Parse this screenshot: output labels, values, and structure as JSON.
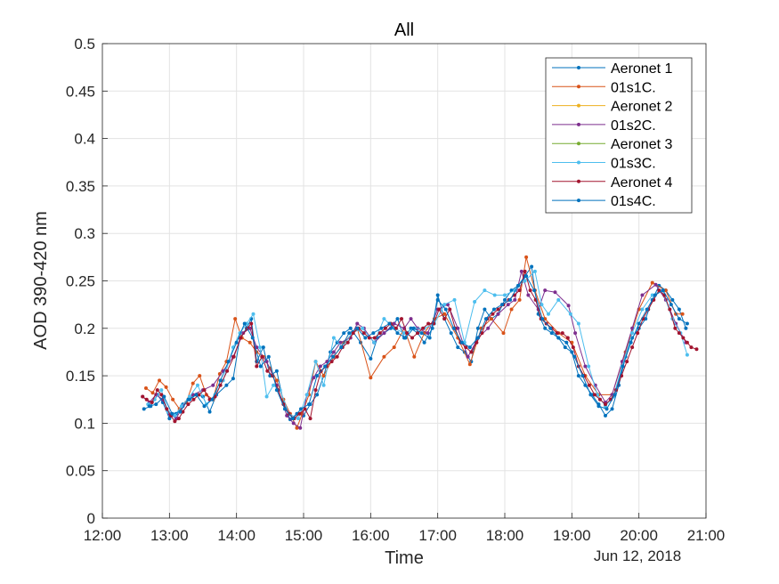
{
  "chart_data": {
    "type": "line",
    "title": "All",
    "xlabel": "Time",
    "ylabel": "AOD 390-420 nm",
    "date_label": "Jun 12, 2018",
    "x_unit": "hours of day (Jun 12, 2018)",
    "xlim": [
      12,
      21
    ],
    "ylim": [
      0,
      0.5
    ],
    "x_ticks": [
      12,
      13,
      14,
      15,
      16,
      17,
      18,
      19,
      20,
      21
    ],
    "x_tick_labels": [
      "12:00",
      "13:00",
      "14:00",
      "15:00",
      "16:00",
      "17:00",
      "18:00",
      "19:00",
      "20:00",
      "21:00"
    ],
    "y_ticks": [
      0,
      0.05,
      0.1,
      0.15,
      0.2,
      0.25,
      0.3,
      0.35,
      0.4,
      0.45,
      0.5
    ],
    "y_tick_labels": [
      "0",
      "0.05",
      "0.1",
      "0.15",
      "0.2",
      "0.25",
      "0.3",
      "0.35",
      "0.4",
      "0.45",
      "0.5"
    ],
    "grid": true,
    "legend_position": "top-right",
    "series": [
      {
        "name": "Aeronet 1",
        "color": "#0072bd",
        "x": [
          12.62,
          12.72,
          12.82,
          12.9,
          13.0,
          13.1,
          13.2,
          13.3,
          13.4,
          13.5,
          13.6,
          13.7,
          13.85,
          13.95,
          14.05,
          14.15,
          14.22,
          14.3,
          14.4,
          14.5,
          14.6,
          14.7,
          14.8,
          14.9,
          15.0,
          15.1,
          15.2,
          15.3,
          15.4,
          15.5,
          15.6,
          15.7,
          15.85,
          16.0,
          16.1,
          16.2,
          16.3,
          16.4,
          16.5,
          16.6,
          16.7,
          16.8,
          16.92,
          17.0,
          17.1,
          17.2,
          17.3,
          17.4,
          17.5,
          17.6,
          17.7,
          17.8,
          17.9,
          18.0,
          18.1,
          18.2,
          18.3,
          18.4,
          18.5,
          18.6,
          18.7,
          18.8,
          18.9,
          19.0,
          19.1,
          19.2,
          19.3,
          19.4,
          19.5,
          19.6,
          19.7,
          19.8,
          19.9,
          20.0,
          20.1,
          20.2,
          20.3,
          20.4,
          20.5,
          20.6,
          20.7
        ],
        "y": [
          0.115,
          0.118,
          0.13,
          0.122,
          0.105,
          0.11,
          0.12,
          0.125,
          0.13,
          0.128,
          0.112,
          0.13,
          0.14,
          0.147,
          0.19,
          0.2,
          0.21,
          0.165,
          0.18,
          0.15,
          0.155,
          0.122,
          0.104,
          0.11,
          0.108,
          0.12,
          0.13,
          0.15,
          0.175,
          0.185,
          0.195,
          0.2,
          0.185,
          0.168,
          0.19,
          0.195,
          0.2,
          0.21,
          0.19,
          0.2,
          0.195,
          0.185,
          0.2,
          0.235,
          0.21,
          0.195,
          0.18,
          0.175,
          0.165,
          0.2,
          0.22,
          0.21,
          0.215,
          0.23,
          0.24,
          0.245,
          0.255,
          0.265,
          0.215,
          0.2,
          0.195,
          0.19,
          0.18,
          0.175,
          0.15,
          0.14,
          0.13,
          0.12,
          0.108,
          0.115,
          0.14,
          0.17,
          0.19,
          0.2,
          0.21,
          0.23,
          0.245,
          0.24,
          0.23,
          0.22,
          0.2
        ]
      },
      {
        "name": "01s1C.",
        "color": "#d95319",
        "x": [
          12.65,
          12.75,
          12.85,
          12.95,
          13.05,
          13.15,
          13.25,
          13.35,
          13.45,
          13.55,
          13.65,
          13.75,
          13.85,
          13.98,
          14.08,
          14.2,
          14.3,
          14.4,
          14.5,
          14.6,
          14.7,
          14.8,
          14.9,
          14.98,
          15.08,
          15.18,
          15.3,
          15.45,
          15.6,
          15.8,
          16.0,
          16.2,
          16.35,
          16.5,
          16.65,
          16.8,
          16.95,
          17.1,
          17.3,
          17.48,
          17.65,
          17.8,
          17.98,
          18.1,
          18.22,
          18.32,
          18.45,
          18.6,
          18.8,
          19.0,
          19.2,
          19.4,
          19.6,
          19.8,
          20.0,
          20.2,
          20.4,
          20.55,
          20.65
        ],
        "y": [
          0.137,
          0.132,
          0.145,
          0.138,
          0.125,
          0.115,
          0.122,
          0.142,
          0.15,
          0.13,
          0.125,
          0.152,
          0.165,
          0.21,
          0.19,
          0.185,
          0.175,
          0.17,
          0.158,
          0.145,
          0.125,
          0.11,
          0.095,
          0.11,
          0.13,
          0.165,
          0.15,
          0.17,
          0.185,
          0.2,
          0.148,
          0.17,
          0.18,
          0.2,
          0.17,
          0.195,
          0.21,
          0.215,
          0.19,
          0.162,
          0.2,
          0.21,
          0.195,
          0.22,
          0.23,
          0.275,
          0.24,
          0.21,
          0.195,
          0.185,
          0.15,
          0.13,
          0.13,
          0.175,
          0.22,
          0.248,
          0.24,
          0.215,
          0.215
        ]
      },
      {
        "name": "Aeronet 2",
        "color": "#edb120",
        "x": [],
        "y": []
      },
      {
        "name": "01s2C.",
        "color": "#7e2f8e",
        "x": [
          12.6,
          12.7,
          12.8,
          12.9,
          13.0,
          13.1,
          13.2,
          13.35,
          13.5,
          13.65,
          13.8,
          13.95,
          14.1,
          14.2,
          14.3,
          14.45,
          14.6,
          14.75,
          14.85,
          14.95,
          15.05,
          15.15,
          15.25,
          15.35,
          15.45,
          15.55,
          15.7,
          15.8,
          15.9,
          16.05,
          16.2,
          16.35,
          16.5,
          16.6,
          16.7,
          16.85,
          17.0,
          17.15,
          17.3,
          17.45,
          17.6,
          17.75,
          17.9,
          18.05,
          18.15,
          18.25,
          18.35,
          18.5,
          18.6,
          18.75,
          18.95,
          19.05,
          19.2,
          19.35,
          19.5,
          19.6,
          19.75,
          19.9,
          20.05,
          20.25,
          20.4,
          20.55,
          20.7
        ],
        "y": [
          0.128,
          0.122,
          0.13,
          0.125,
          0.11,
          0.105,
          0.118,
          0.13,
          0.135,
          0.14,
          0.155,
          0.17,
          0.195,
          0.2,
          0.18,
          0.165,
          0.14,
          0.108,
          0.1,
          0.095,
          0.13,
          0.148,
          0.16,
          0.165,
          0.175,
          0.185,
          0.19,
          0.205,
          0.2,
          0.185,
          0.195,
          0.205,
          0.2,
          0.21,
          0.2,
          0.195,
          0.22,
          0.225,
          0.2,
          0.17,
          0.19,
          0.2,
          0.215,
          0.225,
          0.23,
          0.26,
          0.235,
          0.22,
          0.24,
          0.238,
          0.224,
          0.195,
          0.16,
          0.14,
          0.122,
          0.13,
          0.165,
          0.2,
          0.235,
          0.246,
          0.23,
          0.205,
          0.185
        ]
      },
      {
        "name": "Aeronet 3",
        "color": "#77ac30",
        "x": [],
        "y": []
      },
      {
        "name": "01s3C.",
        "color": "#4dbeee",
        "x": [
          12.68,
          12.78,
          12.88,
          12.98,
          13.08,
          13.18,
          13.3,
          13.42,
          13.55,
          13.68,
          13.8,
          13.95,
          14.05,
          14.15,
          14.25,
          14.35,
          14.45,
          14.55,
          14.65,
          14.78,
          14.92,
          15.05,
          15.18,
          15.3,
          15.45,
          15.58,
          15.72,
          15.88,
          16.05,
          16.2,
          16.35,
          16.5,
          16.65,
          16.8,
          16.95,
          17.1,
          17.25,
          17.4,
          17.55,
          17.7,
          17.85,
          18.0,
          18.15,
          18.3,
          18.45,
          18.55,
          18.65,
          18.8,
          18.98,
          19.1,
          19.25,
          19.38,
          19.5,
          19.62,
          19.75,
          19.9,
          20.05,
          20.2,
          20.35,
          20.5,
          20.62,
          20.72
        ],
        "y": [
          0.12,
          0.125,
          0.135,
          0.112,
          0.108,
          0.118,
          0.128,
          0.14,
          0.12,
          0.13,
          0.145,
          0.18,
          0.195,
          0.205,
          0.215,
          0.18,
          0.128,
          0.14,
          0.135,
          0.11,
          0.105,
          0.13,
          0.165,
          0.14,
          0.19,
          0.18,
          0.195,
          0.2,
          0.185,
          0.21,
          0.2,
          0.195,
          0.2,
          0.2,
          0.205,
          0.225,
          0.23,
          0.185,
          0.228,
          0.24,
          0.235,
          0.235,
          0.24,
          0.25,
          0.26,
          0.225,
          0.215,
          0.23,
          0.215,
          0.205,
          0.16,
          0.13,
          0.118,
          0.128,
          0.16,
          0.195,
          0.22,
          0.235,
          0.24,
          0.21,
          0.195,
          0.172
        ]
      },
      {
        "name": "Aeronet 4",
        "color": "#a2142f",
        "x": [
          12.6,
          12.66,
          12.74,
          12.82,
          12.88,
          12.96,
          13.02,
          13.08,
          13.14,
          13.2,
          13.28,
          13.36,
          13.44,
          13.52,
          13.6,
          13.68,
          13.76,
          13.86,
          13.96,
          14.06,
          14.16,
          14.22,
          14.3,
          14.38,
          14.46,
          14.54,
          14.62,
          14.7,
          14.78,
          14.86,
          14.94,
          15.02,
          15.1,
          15.18,
          15.26,
          15.34,
          15.42,
          15.5,
          15.58,
          15.66,
          15.74,
          15.82,
          15.9,
          15.98,
          16.06,
          16.14,
          16.22,
          16.3,
          16.38,
          16.46,
          16.54,
          16.62,
          16.7,
          16.78,
          16.86,
          16.94,
          17.02,
          17.1,
          17.18,
          17.26,
          17.34,
          17.42,
          17.5,
          17.58,
          17.66,
          17.74,
          17.82,
          17.9,
          17.98,
          18.06,
          18.14,
          18.22,
          18.3,
          18.38,
          18.46,
          18.54,
          18.62,
          18.7,
          18.78,
          18.86,
          18.94,
          19.02,
          19.1,
          19.18,
          19.26,
          19.34,
          19.42,
          19.5,
          19.58,
          19.66,
          19.74,
          19.82,
          19.9,
          19.98,
          20.06,
          20.14,
          20.22,
          20.3,
          20.38,
          20.46,
          20.54,
          20.6,
          20.66,
          20.72,
          20.78,
          20.86
        ],
        "y": [
          0.128,
          0.125,
          0.122,
          0.135,
          0.13,
          0.115,
          0.108,
          0.102,
          0.105,
          0.112,
          0.12,
          0.125,
          0.13,
          0.135,
          0.125,
          0.128,
          0.14,
          0.155,
          0.17,
          0.19,
          0.2,
          0.205,
          0.16,
          0.17,
          0.155,
          0.15,
          0.135,
          0.12,
          0.11,
          0.105,
          0.11,
          0.115,
          0.105,
          0.135,
          0.155,
          0.16,
          0.165,
          0.17,
          0.18,
          0.185,
          0.195,
          0.2,
          0.195,
          0.19,
          0.19,
          0.195,
          0.2,
          0.205,
          0.2,
          0.21,
          0.195,
          0.19,
          0.195,
          0.2,
          0.205,
          0.205,
          0.22,
          0.21,
          0.22,
          0.2,
          0.185,
          0.18,
          0.175,
          0.185,
          0.195,
          0.21,
          0.215,
          0.22,
          0.225,
          0.23,
          0.235,
          0.24,
          0.26,
          0.24,
          0.23,
          0.21,
          0.205,
          0.2,
          0.195,
          0.195,
          0.19,
          0.18,
          0.16,
          0.15,
          0.14,
          0.13,
          0.125,
          0.12,
          0.125,
          0.135,
          0.15,
          0.165,
          0.18,
          0.195,
          0.21,
          0.22,
          0.23,
          0.24,
          0.235,
          0.22,
          0.2,
          0.195,
          0.19,
          0.185,
          0.18,
          0.178
        ]
      },
      {
        "name": "01s4C.",
        "color": "#0072bd",
        "x": [
          12.7,
          12.8,
          12.92,
          13.04,
          13.16,
          13.28,
          13.4,
          13.52,
          13.64,
          13.76,
          13.88,
          14.0,
          14.12,
          14.24,
          14.36,
          14.48,
          14.6,
          14.72,
          14.84,
          14.96,
          15.08,
          15.2,
          15.32,
          15.44,
          15.56,
          15.68,
          15.8,
          15.92,
          16.04,
          16.16,
          16.28,
          16.4,
          16.52,
          16.64,
          16.76,
          16.88,
          17.0,
          17.12,
          17.24,
          17.36,
          17.48,
          17.6,
          17.72,
          17.84,
          17.96,
          18.08,
          18.2,
          18.32,
          18.44,
          18.56,
          18.68,
          18.8,
          18.92,
          19.04,
          19.16,
          19.28,
          19.4,
          19.52,
          19.64,
          19.76,
          19.88,
          20.0,
          20.12,
          20.24,
          20.36,
          20.48,
          20.6,
          20.72
        ],
        "y": [
          0.118,
          0.12,
          0.128,
          0.11,
          0.112,
          0.125,
          0.13,
          0.118,
          0.125,
          0.145,
          0.165,
          0.185,
          0.205,
          0.19,
          0.16,
          0.17,
          0.135,
          0.115,
          0.105,
          0.115,
          0.12,
          0.15,
          0.16,
          0.17,
          0.18,
          0.195,
          0.2,
          0.19,
          0.195,
          0.2,
          0.205,
          0.195,
          0.19,
          0.2,
          0.195,
          0.19,
          0.23,
          0.22,
          0.2,
          0.185,
          0.18,
          0.19,
          0.21,
          0.22,
          0.225,
          0.23,
          0.245,
          0.255,
          0.24,
          0.21,
          0.2,
          0.19,
          0.185,
          0.17,
          0.15,
          0.13,
          0.118,
          0.115,
          0.13,
          0.16,
          0.185,
          0.205,
          0.22,
          0.235,
          0.24,
          0.225,
          0.21,
          0.205
        ]
      }
    ]
  }
}
